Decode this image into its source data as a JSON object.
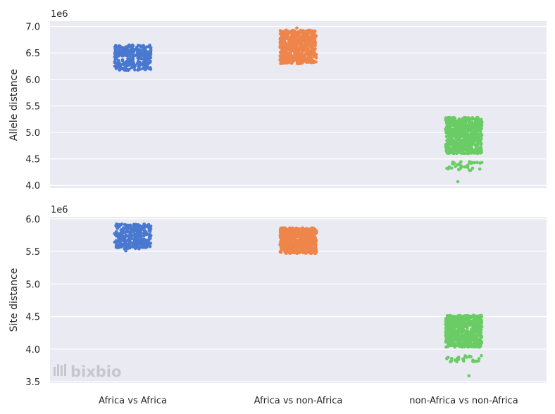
{
  "chart_data": [
    {
      "type": "scatter",
      "subtype": "strip",
      "ylabel": "Allele distance",
      "offset_label": "1e6",
      "categories": [
        "Africa vs Africa",
        "Africa vs non-Africa",
        "non-Africa vs non-Africa"
      ],
      "ylim": [
        3.95,
        7.1
      ],
      "yticks": [
        "4.0",
        "4.5",
        "5.0",
        "5.5",
        "6.0",
        "6.5",
        "7.0"
      ],
      "show_xtick_labels": false,
      "grid": true,
      "groups": [
        {
          "category": "Africa vs Africa",
          "color": "#4878d0",
          "clusters": [
            {
              "low": 6.17,
              "high": 6.65,
              "count": 300
            }
          ],
          "outliers": []
        },
        {
          "category": "Africa vs non-Africa",
          "color": "#ee854a",
          "clusters": [
            {
              "low": 6.3,
              "high": 6.93,
              "count": 650
            }
          ],
          "outliers": [
            6.97
          ]
        },
        {
          "category": "non-Africa vs non-Africa",
          "color": "#6acc64",
          "clusters": [
            {
              "low": 4.6,
              "high": 5.28,
              "count": 650
            },
            {
              "low": 4.28,
              "high": 4.45,
              "count": 35
            }
          ],
          "outliers": [
            4.07
          ]
        }
      ]
    },
    {
      "type": "scatter",
      "subtype": "strip",
      "ylabel": "Site distance",
      "offset_label": "1e6",
      "categories": [
        "Africa vs Africa",
        "Africa vs non-Africa",
        "non-Africa vs non-Africa"
      ],
      "ylim": [
        3.48,
        6.03
      ],
      "yticks": [
        "3.5",
        "4.0",
        "4.5",
        "5.0",
        "5.5",
        "6.0"
      ],
      "show_xtick_labels": true,
      "grid": true,
      "groups": [
        {
          "category": "Africa vs Africa",
          "color": "#4878d0",
          "clusters": [
            {
              "low": 5.54,
              "high": 5.92,
              "count": 300
            }
          ],
          "outliers": [
            5.51
          ]
        },
        {
          "category": "Africa vs non-Africa",
          "color": "#ee854a",
          "clusters": [
            {
              "low": 5.47,
              "high": 5.86,
              "count": 650
            }
          ],
          "outliers": []
        },
        {
          "category": "non-Africa vs non-Africa",
          "color": "#6acc64",
          "clusters": [
            {
              "low": 4.03,
              "high": 4.52,
              "count": 650
            },
            {
              "low": 3.8,
              "high": 3.9,
              "count": 30
            }
          ],
          "outliers": [
            3.59
          ]
        }
      ]
    }
  ],
  "watermark": {
    "text": "bixbio",
    "icon": "bar-logo-icon"
  },
  "colors": {
    "background": "#eaeaf2",
    "grid": "#ffffff",
    "text": "#262626"
  }
}
